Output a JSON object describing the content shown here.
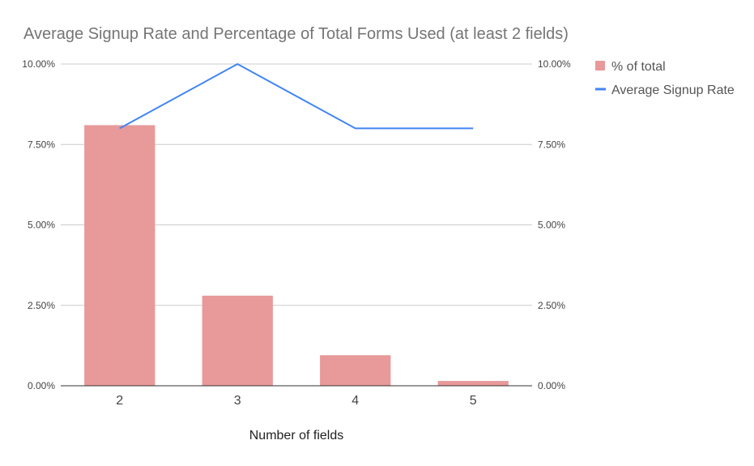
{
  "chart_data": {
    "type": "bar",
    "title": "Average Signup Rate and Percentage of Total Forms Used (at least 2 fields)",
    "xlabel": "Number of fields",
    "categories": [
      "2",
      "3",
      "4",
      "5"
    ],
    "ylim": [
      0,
      0.1
    ],
    "y_ticks": [
      "0.00%",
      "2.50%",
      "5.00%",
      "7.50%",
      "10.00%"
    ],
    "y_tick_values": [
      0,
      0.025,
      0.05,
      0.075,
      0.1
    ],
    "grid": true,
    "legend_position": "top-right",
    "series": [
      {
        "name": "% of total",
        "type": "bar",
        "axis": "left",
        "color": "#e8999a",
        "values": [
          0.081,
          0.028,
          0.0095,
          0.0015
        ]
      },
      {
        "name": "Average Signup Rate",
        "type": "line",
        "axis": "right",
        "color": "#4285f4",
        "values": [
          0.08,
          0.1,
          0.08,
          0.08
        ]
      }
    ]
  }
}
